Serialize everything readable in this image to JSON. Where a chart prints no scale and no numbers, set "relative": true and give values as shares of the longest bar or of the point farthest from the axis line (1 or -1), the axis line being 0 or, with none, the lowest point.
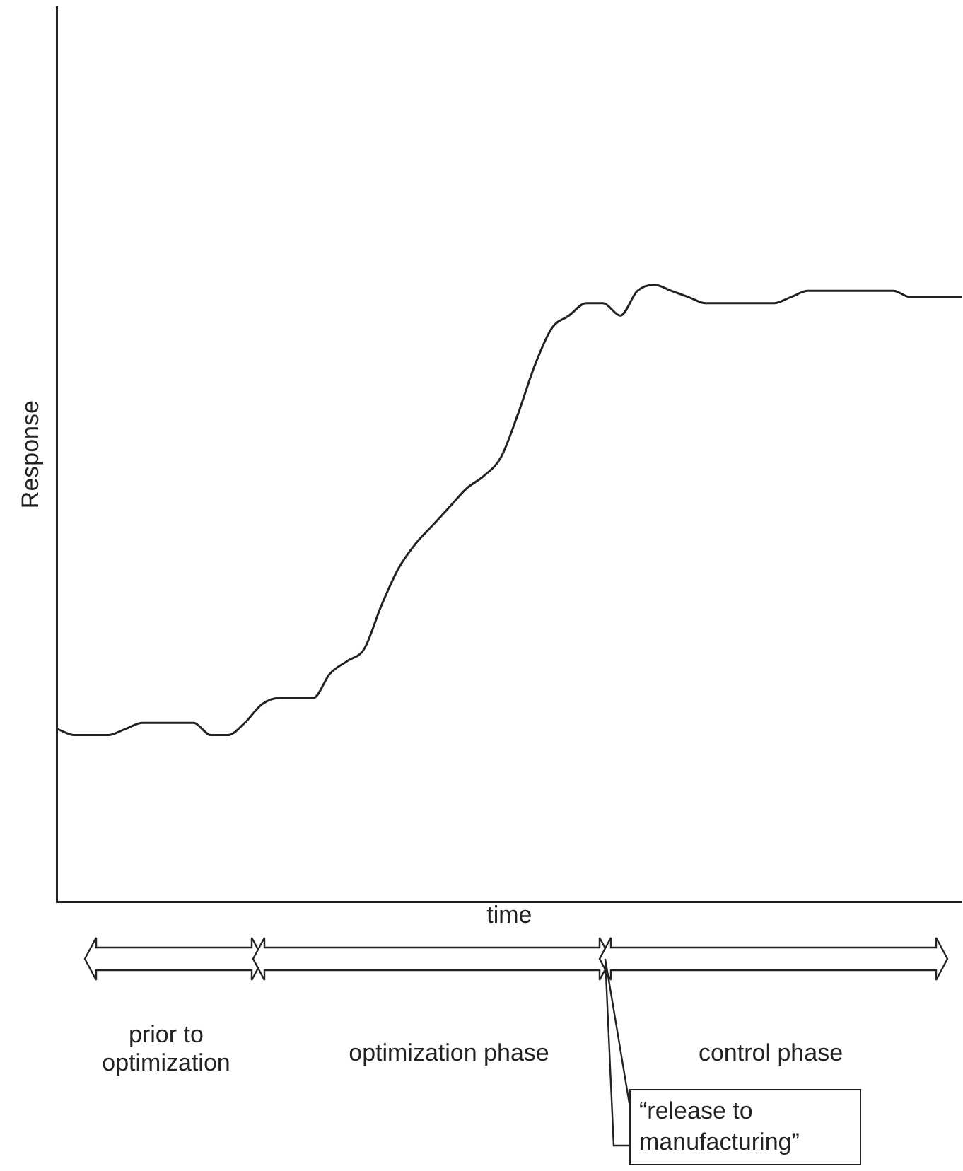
{
  "chart_data": {
    "type": "line",
    "relative": true,
    "xlabel": "time",
    "ylabel": "Response",
    "color": "#222222",
    "marker": "none",
    "legend": false,
    "grid": false,
    "categories": [
      null,
      null,
      null,
      null,
      null,
      null,
      null,
      null,
      null,
      null,
      null,
      null,
      null,
      null,
      null,
      null,
      null,
      null,
      null,
      null,
      null,
      null,
      null,
      null,
      null,
      null,
      null,
      null,
      null,
      null,
      null,
      null,
      null,
      null,
      null,
      null,
      null,
      null,
      null,
      null,
      null,
      null,
      null,
      null,
      null,
      null,
      null,
      null,
      null,
      null,
      null,
      null,
      null,
      null
    ],
    "values": [
      0.28,
      0.27,
      0.27,
      0.27,
      0.28,
      0.29,
      0.29,
      0.29,
      0.29,
      0.27,
      0.27,
      0.29,
      0.32,
      0.33,
      0.33,
      0.33,
      0.37,
      0.39,
      0.41,
      0.48,
      0.54,
      0.58,
      0.61,
      0.64,
      0.67,
      0.69,
      0.72,
      0.79,
      0.87,
      0.93,
      0.95,
      0.97,
      0.97,
      0.95,
      0.99,
      1.0,
      0.99,
      0.98,
      0.97,
      0.97,
      0.97,
      0.97,
      0.97,
      0.98,
      0.99,
      0.99,
      0.99,
      0.99,
      0.99,
      0.99,
      0.98,
      0.98,
      0.98,
      0.98
    ],
    "annotations": [
      "prior to optimization",
      "optimization phase",
      "control phase",
      "“release to manufacturing”"
    ]
  }
}
